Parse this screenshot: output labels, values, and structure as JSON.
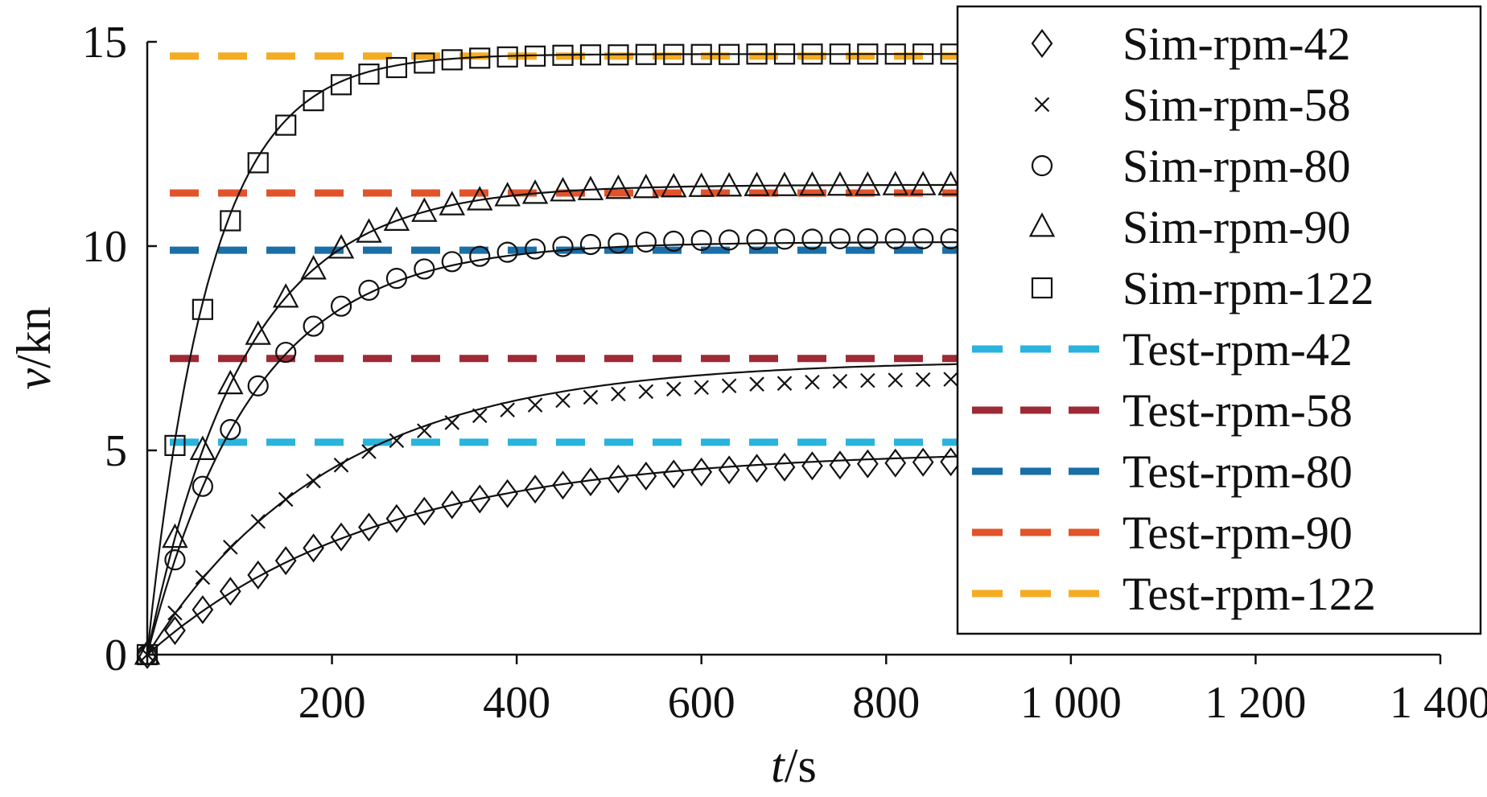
{
  "chart_data": {
    "type": "line",
    "xlabel_var": "t",
    "xlabel_unit": "/s",
    "ylabel_var": "v",
    "ylabel_unit": "/kn",
    "xlim": [
      0,
      1400
    ],
    "ylim": [
      0,
      15
    ],
    "xticks": [
      0,
      200,
      400,
      600,
      800,
      1000,
      1200,
      1400
    ],
    "xtick_labels": [
      "",
      "200",
      "400",
      "600",
      "800",
      "1 000",
      "1 200",
      "1 400"
    ],
    "yticks": [
      0,
      5,
      10,
      15
    ],
    "ytick_labels": [
      "0",
      "5",
      "10",
      "15"
    ],
    "grid": false,
    "legend_position": "top-right",
    "series": [
      {
        "name": "Sim-rpm-42",
        "kind": "sim",
        "marker": "diamond",
        "vmax": 5.0,
        "tau": 250,
        "x": [
          0,
          30,
          60,
          90,
          120,
          150,
          180,
          210,
          240,
          270,
          300,
          330,
          360,
          390,
          420,
          450,
          480,
          510,
          540,
          570,
          600,
          630,
          660,
          690,
          720,
          750,
          780,
          810,
          840,
          870
        ],
        "y": [
          0.0,
          0.59,
          1.1,
          1.55,
          1.95,
          2.3,
          2.61,
          2.88,
          3.12,
          3.33,
          3.51,
          3.67,
          3.81,
          3.94,
          4.05,
          4.15,
          4.23,
          4.3,
          4.37,
          4.42,
          4.47,
          4.52,
          4.56,
          4.59,
          4.62,
          4.64,
          4.67,
          4.69,
          4.71,
          4.72
        ]
      },
      {
        "name": "Sim-rpm-58",
        "kind": "sim",
        "marker": "cross",
        "vmax": 7.2,
        "tau": 200,
        "x": [
          0,
          30,
          60,
          90,
          120,
          150,
          180,
          210,
          240,
          270,
          300,
          330,
          360,
          390,
          420,
          450,
          480,
          510,
          540,
          570,
          600,
          630,
          660,
          690,
          720,
          750,
          780,
          810,
          840,
          870
        ],
        "y": [
          0.0,
          1.02,
          1.89,
          2.63,
          3.26,
          3.8,
          4.25,
          4.64,
          4.97,
          5.24,
          5.48,
          5.68,
          5.85,
          5.99,
          6.11,
          6.22,
          6.3,
          6.38,
          6.44,
          6.5,
          6.54,
          6.58,
          6.62,
          6.64,
          6.67,
          6.69,
          6.71,
          6.72,
          6.73,
          6.74
        ]
      },
      {
        "name": "Sim-rpm-80",
        "kind": "sim",
        "marker": "circle",
        "vmax": 10.1,
        "tau": 115,
        "x": [
          0,
          30,
          60,
          90,
          120,
          150,
          180,
          210,
          240,
          270,
          300,
          330,
          360,
          390,
          420,
          450,
          480,
          510,
          540,
          570,
          600,
          630,
          660,
          690,
          720,
          750,
          780,
          810,
          840,
          870
        ],
        "y": [
          0.0,
          2.32,
          4.12,
          5.51,
          6.58,
          7.4,
          8.04,
          8.53,
          8.92,
          9.21,
          9.44,
          9.62,
          9.75,
          9.85,
          9.93,
          9.99,
          10.04,
          10.07,
          10.1,
          10.12,
          10.14,
          10.15,
          10.16,
          10.17,
          10.17,
          10.18,
          10.18,
          10.18,
          10.18,
          10.18
        ]
      },
      {
        "name": "Sim-rpm-90",
        "kind": "sim",
        "marker": "triangle",
        "vmax": 11.5,
        "tau": 105,
        "x": [
          0,
          30,
          60,
          90,
          120,
          150,
          180,
          210,
          240,
          270,
          300,
          330,
          360,
          390,
          420,
          450,
          480,
          510,
          540,
          570,
          600,
          630,
          660,
          690,
          720,
          750,
          780,
          810,
          840,
          870
        ],
        "y": [
          0.0,
          2.86,
          5.01,
          6.62,
          7.83,
          8.74,
          9.43,
          9.94,
          10.33,
          10.62,
          10.84,
          11.0,
          11.12,
          11.22,
          11.28,
          11.34,
          11.37,
          11.4,
          11.42,
          11.44,
          11.45,
          11.46,
          11.47,
          11.47,
          11.48,
          11.48,
          11.48,
          11.49,
          11.49,
          11.49
        ]
      },
      {
        "name": "Sim-rpm-122",
        "kind": "sim",
        "marker": "square",
        "vmax": 14.7,
        "tau": 68,
        "x": [
          0,
          30,
          60,
          90,
          120,
          150,
          180,
          210,
          240,
          270,
          300,
          330,
          360,
          390,
          420,
          450,
          480,
          510,
          540,
          570,
          600,
          630,
          660,
          690,
          720,
          750,
          780,
          810,
          840,
          870
        ],
        "y": [
          0.0,
          5.12,
          8.45,
          10.62,
          12.04,
          12.96,
          13.56,
          13.95,
          14.21,
          14.37,
          14.48,
          14.56,
          14.6,
          14.63,
          14.65,
          14.67,
          14.68,
          14.68,
          14.69,
          14.69,
          14.69,
          14.69,
          14.7,
          14.7,
          14.7,
          14.7,
          14.7,
          14.7,
          14.7,
          14.7
        ]
      },
      {
        "name": "Test-rpm-42",
        "kind": "test",
        "color": "#29b3dd",
        "value": 5.2
      },
      {
        "name": "Test-rpm-58",
        "kind": "test",
        "color": "#9e2a35",
        "value": 7.25
      },
      {
        "name": "Test-rpm-80",
        "kind": "test",
        "color": "#1a6fa8",
        "value": 9.9
      },
      {
        "name": "Test-rpm-90",
        "kind": "test",
        "color": "#e2532a",
        "value": 11.3
      },
      {
        "name": "Test-rpm-122",
        "kind": "test",
        "color": "#f4ac22",
        "value": 14.65
      }
    ]
  }
}
